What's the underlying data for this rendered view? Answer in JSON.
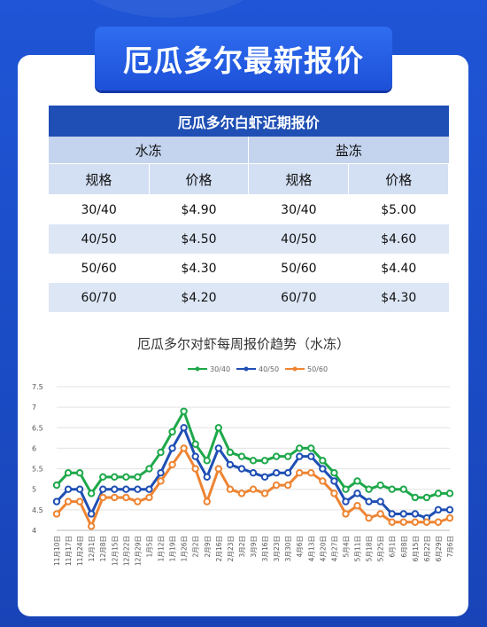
{
  "page": {
    "title": "厄瓜多尔最新报价"
  },
  "table": {
    "title": "厄瓜多尔白虾近期报价",
    "groups": [
      "水冻",
      "盐冻"
    ],
    "col_spec": "规格",
    "col_price": "价格",
    "rows": [
      {
        "frozen_spec": "30/40",
        "frozen_price": "$4.90",
        "salt_spec": "30/40",
        "salt_price": "$5.00"
      },
      {
        "frozen_spec": "40/50",
        "frozen_price": "$4.50",
        "salt_spec": "40/50",
        "salt_price": "$4.60"
      },
      {
        "frozen_spec": "50/60",
        "frozen_price": "$4.30",
        "salt_spec": "50/60",
        "salt_price": "$4.40"
      },
      {
        "frozen_spec": "60/70",
        "frozen_price": "$4.20",
        "salt_spec": "60/70",
        "salt_price": "$4.30"
      }
    ]
  },
  "chart_data": {
    "type": "line",
    "title": "厄瓜多尔对虾每周报价趋势（水冻）",
    "ylim": [
      4,
      7.5
    ],
    "yticks": [
      "4",
      "4.5",
      "5",
      "5.5",
      "6",
      "6.5",
      "7",
      "7.5"
    ],
    "grid": true,
    "legend": "top",
    "x": [
      "11月10日",
      "11月17日",
      "11月24日",
      "12月1日",
      "12月8日",
      "12月15日",
      "12月22日",
      "12月29日",
      "1月5日",
      "1月12日",
      "1月19日",
      "1月26日",
      "2月2日",
      "2月9日",
      "2月16日",
      "2月23日",
      "3月2日",
      "3月9日",
      "3月16日",
      "3月23日",
      "3月30日",
      "4月6日",
      "4月13日",
      "4月20日",
      "4月27日",
      "5月4日",
      "5月11日",
      "5月18日",
      "5月25日",
      "6月1日",
      "6月8日",
      "6月15日",
      "6月22日",
      "6月29日",
      "7月6日"
    ],
    "series": [
      {
        "name": "30/40",
        "color": "#1ea84a",
        "values": [
          5.1,
          5.4,
          5.4,
          4.9,
          5.3,
          5.3,
          5.3,
          5.3,
          5.5,
          5.9,
          6.4,
          6.9,
          6.1,
          5.7,
          6.5,
          5.9,
          5.8,
          5.7,
          5.7,
          5.8,
          5.8,
          6.0,
          6.0,
          5.7,
          5.4,
          5.0,
          5.2,
          5.0,
          5.1,
          5.0,
          5.0,
          4.8,
          4.8,
          4.9,
          4.9
        ]
      },
      {
        "name": "40/50",
        "color": "#1f4fb4",
        "values": [
          4.7,
          5.0,
          5.0,
          4.4,
          5.0,
          5.0,
          5.0,
          5.0,
          5.0,
          5.4,
          6.0,
          6.5,
          5.8,
          5.3,
          6.0,
          5.6,
          5.5,
          5.4,
          5.3,
          5.4,
          5.4,
          5.8,
          5.8,
          5.5,
          5.2,
          4.7,
          4.9,
          4.7,
          4.7,
          4.4,
          4.4,
          4.4,
          4.3,
          4.5,
          4.5
        ]
      },
      {
        "name": "50/60",
        "color": "#ee8432",
        "values": [
          4.4,
          4.7,
          4.7,
          4.1,
          4.8,
          4.8,
          4.8,
          4.7,
          4.8,
          5.2,
          5.6,
          6.0,
          5.5,
          4.7,
          5.5,
          5.0,
          4.9,
          5.0,
          4.9,
          5.1,
          5.1,
          5.4,
          5.4,
          5.2,
          4.9,
          4.4,
          4.6,
          4.3,
          4.4,
          4.2,
          4.2,
          4.2,
          4.2,
          4.2,
          4.3
        ]
      }
    ]
  }
}
